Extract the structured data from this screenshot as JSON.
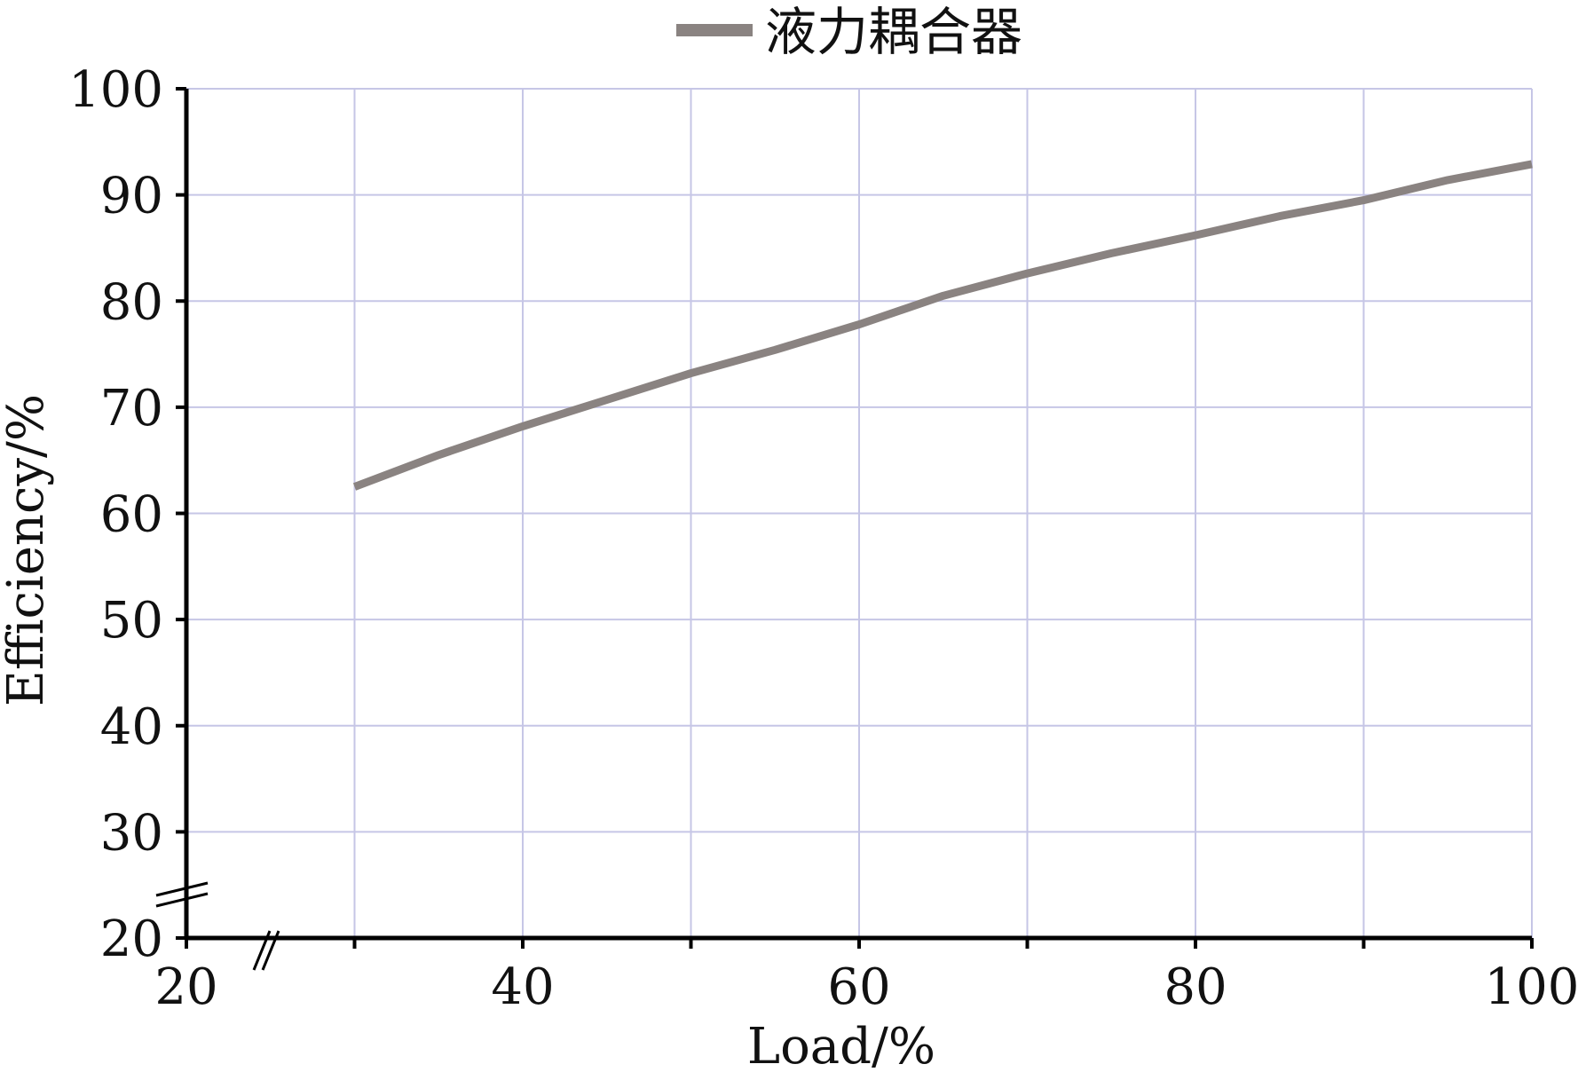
{
  "chart_data": {
    "type": "line",
    "xlabel": "Load/%",
    "ylabel": "Efficiency/%",
    "xlim": [
      20,
      100
    ],
    "ylim": [
      20,
      100
    ],
    "x_ticks": [
      20,
      30,
      40,
      50,
      60,
      70,
      80,
      90,
      100
    ],
    "x_tick_labels": [
      "20",
      "40",
      "60",
      "80",
      "100"
    ],
    "y_ticks": [
      20,
      30,
      40,
      50,
      60,
      70,
      80,
      90,
      100
    ],
    "y_tick_labels": [
      "20",
      "30",
      "40",
      "50",
      "60",
      "70",
      "80",
      "90",
      "100"
    ],
    "axis_breaks": true,
    "grid": true,
    "legend_position": "top-center",
    "series": [
      {
        "name": "液力耦合器",
        "color": "#8a8381",
        "x": [
          30,
          35,
          40,
          45,
          50,
          55,
          60,
          65,
          70,
          75,
          80,
          85,
          90,
          95,
          100
        ],
        "y": [
          62.5,
          65.5,
          68.2,
          70.7,
          73.2,
          75.4,
          77.8,
          80.5,
          82.6,
          84.5,
          86.2,
          88.0,
          89.5,
          91.4,
          92.9
        ]
      }
    ]
  },
  "colors": {
    "grid": "#c6c6e6",
    "axis": "#000000"
  }
}
